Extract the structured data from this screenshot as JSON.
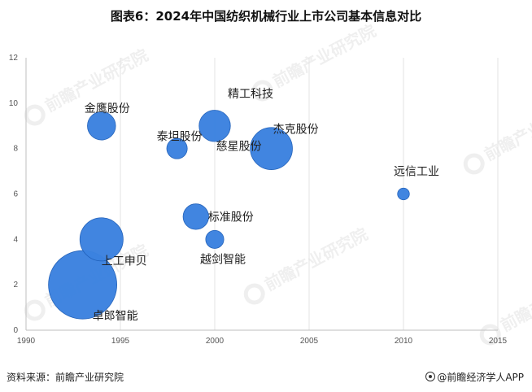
{
  "header": {
    "title": "图表6：2024年中国纺织机械行业上市公司基本信息对比"
  },
  "footer": {
    "source": "资料来源：前瞻产业研究院",
    "credit": "@前瞻经济学人APP"
  },
  "watermark": {
    "text": "前瞻产业研究院"
  },
  "colors": {
    "bubble": "#3b82e0",
    "bubble_edge": "#1f5fb8",
    "grid": "#e3e3e3",
    "axis": "#bfbfbf"
  },
  "chart_data": {
    "type": "scatter",
    "title": "",
    "xlabel": "",
    "ylabel": "",
    "xlim": [
      1990,
      2015
    ],
    "ylim": [
      0,
      12
    ],
    "x_ticks": [
      1990,
      1995,
      2000,
      2005,
      2010,
      2015
    ],
    "y_ticks": [
      0,
      2,
      4,
      6,
      8,
      10,
      12
    ],
    "grid": "vertical",
    "series": [
      {
        "points": [
          {
            "label": "卓郎智能",
            "x": 1993,
            "y": 2,
            "size": 100
          },
          {
            "label": "上工申贝",
            "x": 1994,
            "y": 4,
            "size": 40
          },
          {
            "label": "金鹰股份",
            "x": 1994,
            "y": 9,
            "size": 17
          },
          {
            "label": "泰坦股份",
            "x": 1998,
            "y": 8,
            "size": 9
          },
          {
            "label": "标准股份",
            "x": 1999,
            "y": 5,
            "size": 14
          },
          {
            "label": "精工科技",
            "x": 2000,
            "y": 9,
            "size": 21
          },
          {
            "label": "越剑智能",
            "x": 2000,
            "y": 4,
            "size": 7
          },
          {
            "label": "慈星股份",
            "x": 2003,
            "y": 8,
            "size": 38
          },
          {
            "label": "杰克股份",
            "x": 2003,
            "y": 8,
            "size": 38
          },
          {
            "label": "远信工业",
            "x": 2010,
            "y": 6,
            "size": 3
          }
        ]
      }
    ]
  }
}
